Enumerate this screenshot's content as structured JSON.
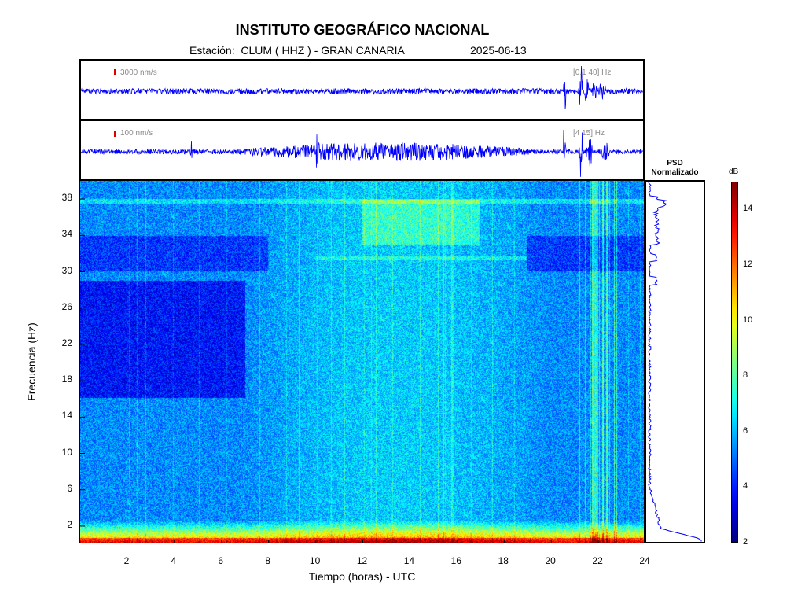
{
  "header": {
    "title": "INSTITUTO GEOGRÁFICO NACIONAL",
    "station_line": "Estación:  CLUM ( HHZ ) - GRAN CANARIA",
    "date": "2025-06-13"
  },
  "waveforms": [
    {
      "scale_label": "3000 nm/s",
      "band_label": "[0.1 40] Hz"
    },
    {
      "scale_label": "100 nm/s",
      "band_label": "[4 15] Hz"
    }
  ],
  "psd": {
    "title_line1": "PSD",
    "title_line2": "Normalizado"
  },
  "colorbar": {
    "unit": "dB",
    "range": [
      2,
      15
    ],
    "ticks": [
      "14",
      "12",
      "10",
      "8",
      "6",
      "4",
      "2"
    ]
  },
  "colors": {
    "trace": "#0000ff",
    "scale_marker": "#e00000"
  },
  "chart_data": {
    "type": "heatmap",
    "title": "INSTITUTO GEOGRÁFICO NACIONAL",
    "xlabel": "Tiempo (horas) - UTC",
    "ylabel": "Frecuencia  (Hz)",
    "xlim": [
      0,
      24
    ],
    "ylim": [
      0,
      40
    ],
    "xticks": [
      "2",
      "4",
      "6",
      "8",
      "10",
      "12",
      "14",
      "16",
      "18",
      "20",
      "22",
      "24"
    ],
    "yticks": [
      "2",
      "6",
      "10",
      "14",
      "18",
      "22",
      "26",
      "30",
      "34",
      "38"
    ],
    "colormap": "jet",
    "clim_db": [
      2,
      15
    ]
  }
}
